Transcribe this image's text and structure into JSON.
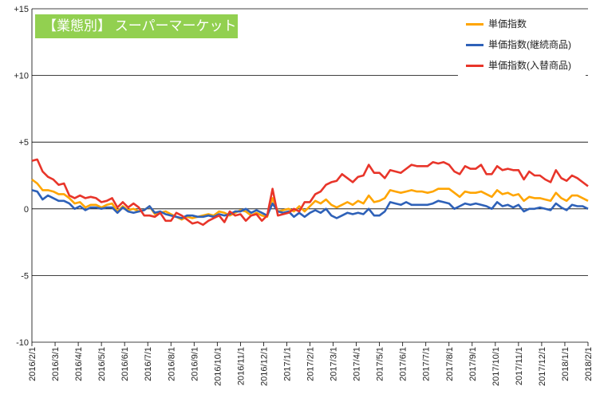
{
  "chart_data": {
    "type": "line",
    "title": "【業態別】 スーパーマーケット",
    "ylim": [
      -10,
      15
    ],
    "yticks": [
      {
        "value": 15,
        "label": "+15"
      },
      {
        "value": 10,
        "label": "+10"
      },
      {
        "value": 5,
        "label": "+5"
      },
      {
        "value": 0,
        "label": "0"
      },
      {
        "value": -5,
        "label": "-5"
      },
      {
        "value": -10,
        "label": "-10"
      }
    ],
    "xtick_labels": [
      "2016/2/1",
      "2016/3/1",
      "2016/4/1",
      "2016/5/1",
      "2016/6/1",
      "2016/7/1",
      "2016/8/1",
      "2016/9/1",
      "2016/10/1",
      "2016/11/1",
      "2016/12/1",
      "2017/1/1",
      "2017/2/1",
      "2017/3/1",
      "2017/4/1",
      "2017/5/1",
      "2017/6/1",
      "2017/7/1",
      "2017/8/1",
      "2017/9/1",
      "2017/10/1",
      "2017/11/1",
      "2017/12/1",
      "2018/1/1",
      "2018/2/1"
    ],
    "legend_position": "top-right",
    "grid": "horizontal major lines",
    "series": [
      {
        "name": "単価指数",
        "color": "#ffa500",
        "values": [
          2.2,
          1.9,
          1.4,
          1.4,
          1.3,
          1.1,
          1.1,
          0.8,
          0.4,
          0.5,
          0.1,
          0.3,
          0.3,
          0.1,
          0.3,
          0.4,
          -0.2,
          0.2,
          -0.1,
          0.0,
          -0.2,
          -0.1,
          0.2,
          -0.4,
          -0.3,
          -0.2,
          -0.4,
          -0.6,
          -0.8,
          -0.6,
          -0.7,
          -0.6,
          -0.5,
          -0.4,
          -0.5,
          -0.2,
          -0.3,
          -0.5,
          -0.3,
          -0.1,
          -0.2,
          -0.5,
          -0.3,
          -0.5,
          -0.6,
          0.8,
          -0.2,
          -0.1,
          0.0,
          -0.2,
          0.2,
          -0.2,
          0.2,
          0.6,
          0.4,
          0.7,
          0.3,
          0.1,
          0.3,
          0.5,
          0.3,
          0.6,
          0.4,
          1.0,
          0.5,
          0.6,
          0.8,
          1.4,
          1.3,
          1.2,
          1.3,
          1.4,
          1.3,
          1.3,
          1.2,
          1.3,
          1.5,
          1.5,
          1.5,
          1.2,
          0.9,
          1.3,
          1.2,
          1.2,
          1.3,
          1.1,
          0.9,
          1.4,
          1.1,
          1.2,
          1.0,
          1.1,
          0.6,
          0.9,
          0.8,
          0.8,
          0.7,
          0.6,
          1.2,
          0.8,
          0.6,
          1.0,
          1.0,
          0.8,
          0.6
        ]
      },
      {
        "name": "単価指数(継続商品)",
        "color": "#2e61b8",
        "values": [
          1.4,
          1.3,
          0.7,
          1.0,
          0.8,
          0.6,
          0.6,
          0.4,
          0.0,
          0.2,
          -0.1,
          0.1,
          0.1,
          0.0,
          0.1,
          0.1,
          -0.3,
          0.1,
          -0.2,
          -0.3,
          -0.2,
          -0.1,
          0.2,
          -0.3,
          -0.2,
          -0.4,
          -0.5,
          -0.6,
          -0.7,
          -0.5,
          -0.5,
          -0.6,
          -0.6,
          -0.5,
          -0.6,
          -0.4,
          -0.5,
          -0.4,
          -0.2,
          -0.2,
          0.0,
          -0.3,
          -0.1,
          -0.3,
          -0.5,
          0.4,
          -0.2,
          -0.3,
          -0.2,
          -0.6,
          -0.3,
          -0.6,
          -0.3,
          -0.1,
          -0.3,
          0.0,
          -0.5,
          -0.7,
          -0.5,
          -0.3,
          -0.4,
          -0.3,
          -0.4,
          0.0,
          -0.5,
          -0.5,
          -0.2,
          0.5,
          0.4,
          0.3,
          0.5,
          0.3,
          0.3,
          0.3,
          0.3,
          0.4,
          0.6,
          0.5,
          0.4,
          0.0,
          0.2,
          0.4,
          0.3,
          0.4,
          0.3,
          0.2,
          0.0,
          0.5,
          0.2,
          0.3,
          0.1,
          0.3,
          -0.2,
          0.0,
          0.0,
          0.1,
          0.0,
          -0.1,
          0.4,
          0.1,
          -0.1,
          0.3,
          0.2,
          0.2,
          0.0
        ]
      },
      {
        "name": "単価指数(入替商品)",
        "color": "#e8352a",
        "values": [
          3.6,
          3.7,
          2.8,
          2.4,
          2.2,
          1.8,
          1.9,
          1.0,
          0.8,
          1.0,
          0.8,
          0.9,
          0.8,
          0.5,
          0.6,
          0.8,
          0.1,
          0.5,
          0.1,
          0.4,
          0.1,
          -0.5,
          -0.5,
          -0.6,
          -0.3,
          -0.9,
          -0.9,
          -0.3,
          -0.5,
          -0.8,
          -1.1,
          -1.0,
          -1.2,
          -0.9,
          -0.7,
          -0.5,
          -1.0,
          -0.2,
          -0.5,
          -0.4,
          -0.9,
          -0.5,
          -0.4,
          -0.9,
          -0.5,
          1.5,
          -0.5,
          -0.4,
          -0.3,
          0.0,
          -0.2,
          0.5,
          0.5,
          1.1,
          1.3,
          1.8,
          2.0,
          2.1,
          2.6,
          2.3,
          2.0,
          2.4,
          2.5,
          3.3,
          2.7,
          2.7,
          2.3,
          2.9,
          2.8,
          2.7,
          3.0,
          3.3,
          3.2,
          3.2,
          3.2,
          3.5,
          3.4,
          3.5,
          3.3,
          2.8,
          2.6,
          3.2,
          3.0,
          3.0,
          3.3,
          2.6,
          2.6,
          3.2,
          2.9,
          3.0,
          2.9,
          2.9,
          2.2,
          2.8,
          2.5,
          2.5,
          2.2,
          2.0,
          2.9,
          2.3,
          2.1,
          2.5,
          2.3,
          2.0,
          1.7
        ]
      }
    ]
  }
}
